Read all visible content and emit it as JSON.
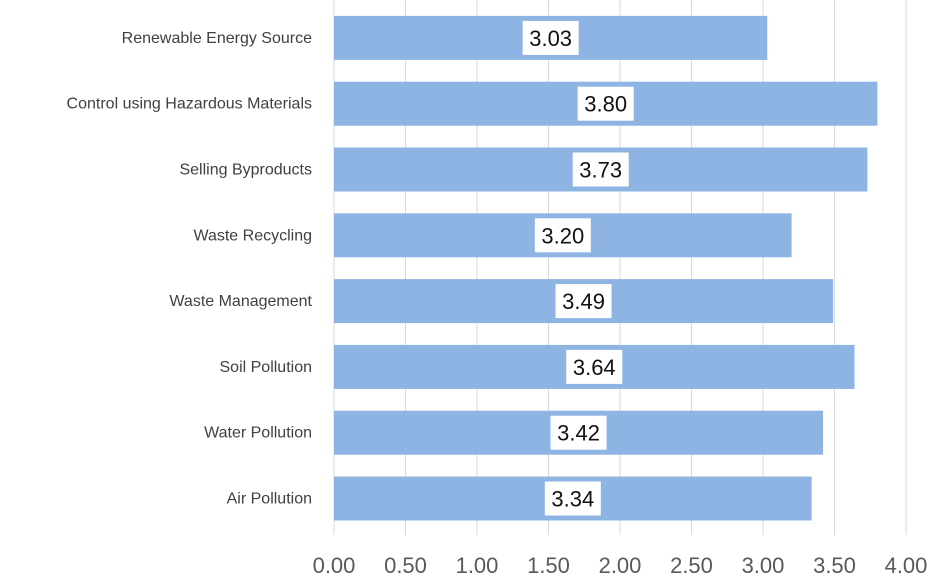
{
  "chart_data": {
    "type": "bar",
    "orientation": "horizontal",
    "title": "",
    "xlabel": "",
    "ylabel": "",
    "categories": [
      "Renewable Energy Source",
      "Control using Hazardous Materials",
      "Selling Byproducts",
      "Waste Recycling",
      "Waste Management",
      "Soil Pollution",
      "Water Pollution",
      "Air Pollution"
    ],
    "values": [
      3.03,
      3.8,
      3.73,
      3.2,
      3.49,
      3.64,
      3.42,
      3.34
    ],
    "data_labels": [
      "3.03",
      "3.80",
      "3.73",
      "3.20",
      "3.49",
      "3.64",
      "3.42",
      "3.34"
    ],
    "xlim": [
      0,
      4
    ],
    "x_ticks": [
      0,
      0.5,
      1,
      1.5,
      2,
      2.5,
      3,
      3.5,
      4
    ],
    "x_tick_labels": [
      "0.00",
      "0.50",
      "1.00",
      "1.50",
      "2.00",
      "2.50",
      "3.00",
      "3.50",
      "4.00"
    ],
    "grid": true,
    "legend": "none",
    "bar_color": "#8db4e2",
    "grid_color": "#d9d9d9"
  }
}
